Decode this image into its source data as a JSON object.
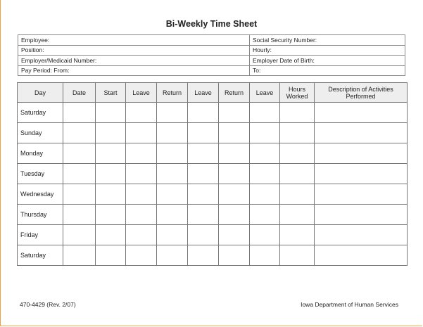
{
  "title": "Bi-Weekly Time Sheet",
  "info": [
    {
      "left": "Employee:",
      "right": "Social Security Number:"
    },
    {
      "left": "Position:",
      "right": "Hourly:"
    },
    {
      "left": "Employer/Medicaid Number:",
      "right": "Employer Date of Birth:"
    },
    {
      "left": "Pay Period:  From:",
      "right": "To:"
    }
  ],
  "columns": [
    "Day",
    "Date",
    "Start",
    "Leave",
    "Return",
    "Leave",
    "Return",
    "Leave",
    "Hours Worked",
    "Description of Activities Performed"
  ],
  "days": [
    "Saturday",
    "Sunday",
    "Monday",
    "Tuesday",
    "Wednesday",
    "Thursday",
    "Friday",
    "Saturday"
  ],
  "footer": {
    "form_number": "470-4429  (Rev. 2/07)",
    "agency": "Iowa Department of Human Services"
  },
  "colors": {
    "border_accent": "#f0a040",
    "header_bg": "#eeeeee"
  }
}
